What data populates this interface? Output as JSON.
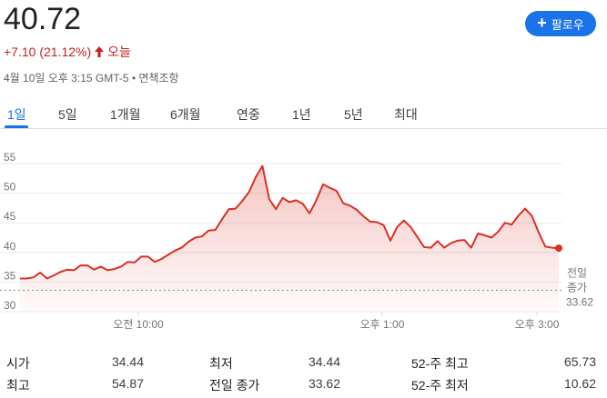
{
  "quote": {
    "price": "40.72",
    "change": "+7.10 (21.12%)",
    "change_period": "오늘",
    "timestamp": "4월 10일 오후 3:15 GMT-5 • 면책조항",
    "change_color": "#c5221f"
  },
  "follow_button": {
    "label": "팔로우",
    "icon": "plus-icon"
  },
  "tabs": [
    {
      "label": "1일",
      "active": true
    },
    {
      "label": "5일"
    },
    {
      "label": "1개월"
    },
    {
      "label": "6개월"
    },
    {
      "label": "연중"
    },
    {
      "label": "1년"
    },
    {
      "label": "5년"
    },
    {
      "label": "최대"
    }
  ],
  "chart_data": {
    "type": "area",
    "x_tick_labels": [
      "오전 10:00",
      "오후 1:00",
      "오후 3:00"
    ],
    "y_tick_labels": [
      "55",
      "50",
      "45",
      "40",
      "35",
      "30"
    ],
    "ylim": [
      30,
      57
    ],
    "grid": true,
    "series": [
      {
        "values": [
          35.6,
          35.6,
          35.8,
          36.6,
          35.6,
          36.1,
          36.7,
          37.1,
          37.0,
          37.8,
          37.8,
          37.1,
          37.6,
          37.0,
          37.2,
          37.6,
          38.4,
          38.3,
          39.3,
          39.3,
          38.4,
          38.9,
          39.6,
          40.3,
          40.8,
          41.8,
          42.5,
          42.7,
          43.7,
          43.8,
          45.6,
          47.3,
          47.4,
          48.7,
          50.2,
          52.7,
          54.6,
          49.0,
          47.3,
          49.2,
          48.5,
          48.8,
          48.2,
          46.6,
          48.8,
          51.5,
          50.9,
          50.4,
          48.3,
          47.9,
          47.2,
          46.1,
          45.2,
          45.1,
          44.6,
          42.0,
          44.3,
          45.4,
          44.3,
          42.6,
          40.9,
          40.8,
          41.9,
          40.8,
          41.6,
          42.0,
          42.1,
          40.8,
          43.2,
          42.9,
          42.5,
          43.5,
          45.0,
          44.7,
          46.2,
          47.4,
          46.2,
          43.4,
          41.0,
          40.8,
          40.72
        ],
        "color": "#d93025"
      }
    ],
    "previous_close": {
      "label_line1": "전일",
      "label_line2": "종가",
      "value": "33.62",
      "y": 33.62
    }
  },
  "stats": [
    {
      "label": "시가",
      "value": "34.44"
    },
    {
      "label": "최저",
      "value": "34.44"
    },
    {
      "label": "52-주 최고",
      "value": "65.73"
    },
    {
      "label": "최고",
      "value": "54.87"
    },
    {
      "label": "전일 종가",
      "value": "33.62"
    },
    {
      "label": "52-주 최저",
      "value": "10.62"
    }
  ]
}
